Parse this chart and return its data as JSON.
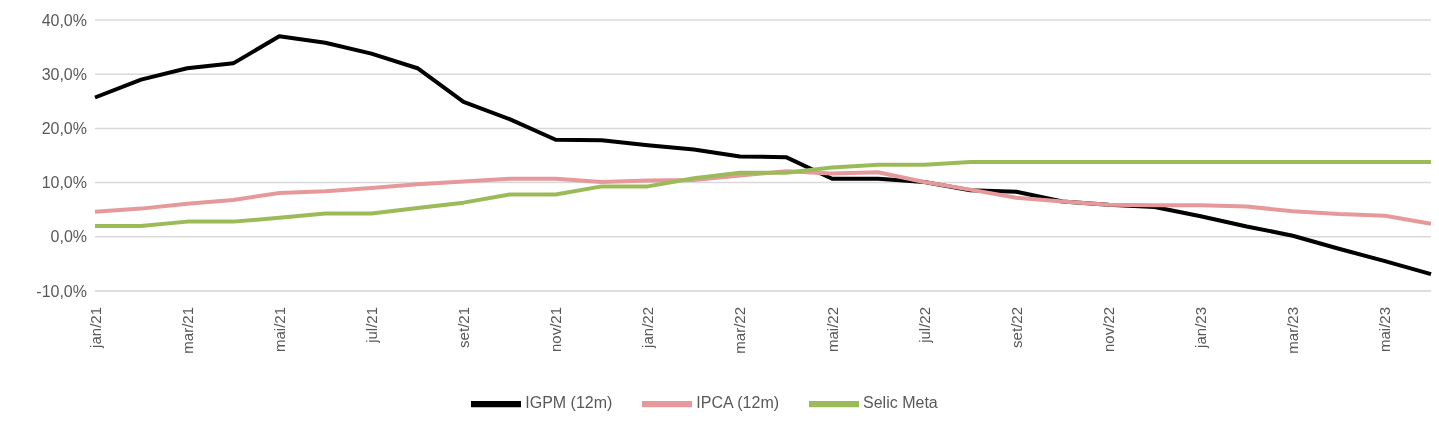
{
  "chart_data": {
    "type": "line",
    "categories": [
      "jan/21",
      null,
      "mar/21",
      null,
      "mai/21",
      null,
      "jul/21",
      null,
      "set/21",
      null,
      "nov/21",
      null,
      "jan/22",
      null,
      "mar/22",
      null,
      "mai/22",
      null,
      "jul/22",
      null,
      "set/22",
      null,
      "nov/22",
      null,
      "jan/23",
      null,
      "mar/23",
      null,
      "mai/23",
      null
    ],
    "series": [
      {
        "name": "IGPM (12m)",
        "color": "#000000",
        "values": [
          25.7,
          29.0,
          31.1,
          32.0,
          37.0,
          35.8,
          33.8,
          31.1,
          24.9,
          21.7,
          17.9,
          17.8,
          16.9,
          16.1,
          14.8,
          14.7,
          10.7,
          10.7,
          10.1,
          8.6,
          8.3,
          6.5,
          5.9,
          5.5,
          3.8,
          1.9,
          0.2,
          -2.2,
          -4.5,
          -6.9
        ]
      },
      {
        "name": "IPCA (12m)",
        "color": "#e6999a",
        "values": [
          4.6,
          5.2,
          6.1,
          6.8,
          8.1,
          8.4,
          9.0,
          9.7,
          10.2,
          10.7,
          10.7,
          10.1,
          10.4,
          10.5,
          11.3,
          12.1,
          11.7,
          11.9,
          10.1,
          8.7,
          7.2,
          6.5,
          5.9,
          5.8,
          5.8,
          5.6,
          4.7,
          4.2,
          3.9,
          2.4
        ]
      },
      {
        "name": "Selic Meta",
        "color": "#9bbb59",
        "values": [
          2.0,
          2.0,
          2.8,
          2.8,
          3.5,
          4.3,
          4.3,
          5.3,
          6.3,
          7.8,
          7.8,
          9.3,
          9.3,
          10.8,
          11.8,
          11.8,
          12.8,
          13.3,
          13.3,
          13.8,
          13.8,
          13.8,
          13.8,
          13.8,
          13.8,
          13.8,
          13.8,
          13.8,
          13.8,
          13.8
        ]
      }
    ],
    "ylim": [
      -10,
      40
    ],
    "yticks": [
      {
        "value": -10,
        "label": "-10,0%"
      },
      {
        "value": 0,
        "label": "0,0%"
      },
      {
        "value": 10,
        "label": "10,0%"
      },
      {
        "value": 20,
        "label": "20,0%"
      },
      {
        "value": 30,
        "label": "30,0%"
      },
      {
        "value": 40,
        "label": "40,0%"
      }
    ],
    "grid": "y",
    "legend": "bottom",
    "marker": "none",
    "line_style": "solid"
  }
}
